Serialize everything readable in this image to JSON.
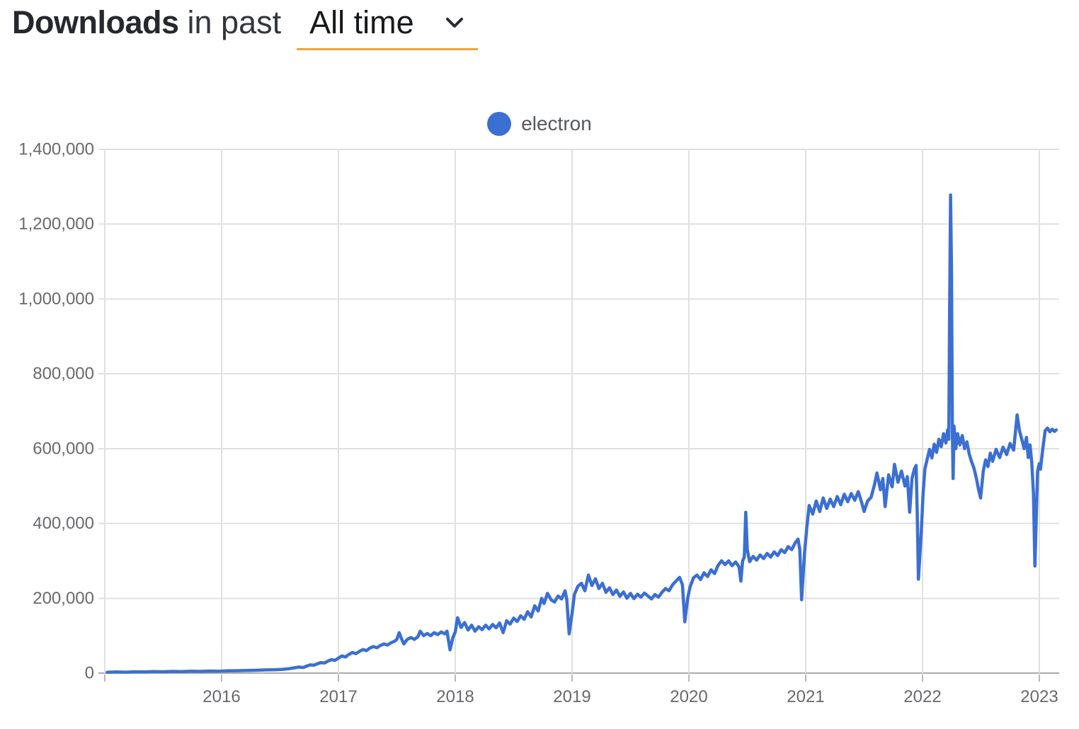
{
  "header": {
    "title_bold": "Downloads",
    "title_rest": "in past",
    "range_selector": {
      "value": "All time",
      "underline_color": "#f0a43c"
    }
  },
  "legend": {
    "series_label": "electron",
    "marker_color": "#3b6fd2"
  },
  "chart_data": {
    "type": "line",
    "title": "Downloads in past All time",
    "xlabel": "",
    "ylabel": "",
    "xlim": [
      2015.0,
      2023.17
    ],
    "ylim": [
      0,
      1400000
    ],
    "grid": true,
    "legend_position": "top-center",
    "line_color": "#3b6fd2",
    "grid_color": "#e0e0e0",
    "axis_color": "#ababab",
    "tick_color": "#b8b8b8",
    "tick_label_color": "#68696c",
    "x_ticks": [
      {
        "value": 2015,
        "label": ""
      },
      {
        "value": 2016,
        "label": "2016"
      },
      {
        "value": 2017,
        "label": "2017"
      },
      {
        "value": 2018,
        "label": "2018"
      },
      {
        "value": 2019,
        "label": "2019"
      },
      {
        "value": 2020,
        "label": "2020"
      },
      {
        "value": 2021,
        "label": "2021"
      },
      {
        "value": 2022,
        "label": "2022"
      },
      {
        "value": 2023,
        "label": "2023"
      }
    ],
    "y_ticks": [
      {
        "value": 0,
        "label": "0"
      },
      {
        "value": 200000,
        "label": "200,000"
      },
      {
        "value": 400000,
        "label": "400,000"
      },
      {
        "value": 600000,
        "label": "600,000"
      },
      {
        "value": 800000,
        "label": "800,000"
      },
      {
        "value": 1000000,
        "label": "1,000,000"
      },
      {
        "value": 1200000,
        "label": "1,200,000"
      },
      {
        "value": 1400000,
        "label": "1,400,000"
      }
    ],
    "series": [
      {
        "name": "electron",
        "color": "#3b6fd2",
        "points": [
          [
            2015.02,
            2000
          ],
          [
            2015.1,
            3000
          ],
          [
            2015.18,
            2500
          ],
          [
            2015.26,
            3500
          ],
          [
            2015.34,
            3000
          ],
          [
            2015.42,
            4000
          ],
          [
            2015.5,
            3500
          ],
          [
            2015.58,
            4500
          ],
          [
            2015.66,
            4000
          ],
          [
            2015.74,
            5000
          ],
          [
            2015.82,
            4500
          ],
          [
            2015.9,
            5500
          ],
          [
            2015.98,
            5000
          ],
          [
            2016.06,
            6000
          ],
          [
            2016.14,
            6500
          ],
          [
            2016.22,
            7000
          ],
          [
            2016.3,
            7500
          ],
          [
            2016.38,
            8500
          ],
          [
            2016.46,
            9000
          ],
          [
            2016.52,
            10000
          ],
          [
            2016.58,
            12000
          ],
          [
            2016.62,
            14000
          ],
          [
            2016.66,
            16000
          ],
          [
            2016.7,
            15000
          ],
          [
            2016.73,
            19000
          ],
          [
            2016.76,
            22000
          ],
          [
            2016.79,
            21000
          ],
          [
            2016.82,
            25000
          ],
          [
            2016.85,
            28000
          ],
          [
            2016.88,
            27000
          ],
          [
            2016.91,
            32000
          ],
          [
            2016.94,
            36000
          ],
          [
            2016.97,
            34000
          ],
          [
            2017.0,
            40000
          ],
          [
            2017.03,
            46000
          ],
          [
            2017.06,
            43000
          ],
          [
            2017.09,
            50000
          ],
          [
            2017.12,
            55000
          ],
          [
            2017.15,
            52000
          ],
          [
            2017.18,
            58000
          ],
          [
            2017.21,
            63000
          ],
          [
            2017.24,
            60000
          ],
          [
            2017.27,
            67000
          ],
          [
            2017.3,
            71000
          ],
          [
            2017.33,
            68000
          ],
          [
            2017.36,
            74000
          ],
          [
            2017.39,
            78000
          ],
          [
            2017.42,
            75000
          ],
          [
            2017.45,
            81000
          ],
          [
            2017.48,
            85000
          ],
          [
            2017.5,
            90000
          ],
          [
            2017.52,
            108000
          ],
          [
            2017.54,
            92000
          ],
          [
            2017.56,
            78000
          ],
          [
            2017.59,
            90000
          ],
          [
            2017.62,
            95000
          ],
          [
            2017.65,
            90000
          ],
          [
            2017.68,
            97000
          ],
          [
            2017.7,
            112000
          ],
          [
            2017.73,
            100000
          ],
          [
            2017.76,
            106000
          ],
          [
            2017.79,
            100000
          ],
          [
            2017.82,
            108000
          ],
          [
            2017.85,
            103000
          ],
          [
            2017.88,
            110000
          ],
          [
            2017.91,
            105000
          ],
          [
            2017.93,
            112000
          ],
          [
            2017.955,
            62000
          ],
          [
            2017.98,
            95000
          ],
          [
            2018.0,
            110000
          ],
          [
            2018.02,
            148000
          ],
          [
            2018.05,
            122000
          ],
          [
            2018.08,
            135000
          ],
          [
            2018.11,
            115000
          ],
          [
            2018.14,
            128000
          ],
          [
            2018.17,
            112000
          ],
          [
            2018.2,
            124000
          ],
          [
            2018.23,
            116000
          ],
          [
            2018.26,
            128000
          ],
          [
            2018.29,
            118000
          ],
          [
            2018.32,
            130000
          ],
          [
            2018.35,
            121000
          ],
          [
            2018.38,
            134000
          ],
          [
            2018.41,
            108000
          ],
          [
            2018.44,
            140000
          ],
          [
            2018.47,
            131000
          ],
          [
            2018.5,
            147000
          ],
          [
            2018.53,
            138000
          ],
          [
            2018.56,
            153000
          ],
          [
            2018.59,
            144000
          ],
          [
            2018.62,
            164000
          ],
          [
            2018.65,
            150000
          ],
          [
            2018.68,
            180000
          ],
          [
            2018.71,
            166000
          ],
          [
            2018.74,
            200000
          ],
          [
            2018.76,
            186000
          ],
          [
            2018.79,
            213000
          ],
          [
            2018.82,
            196000
          ],
          [
            2018.85,
            190000
          ],
          [
            2018.88,
            206000
          ],
          [
            2018.91,
            198000
          ],
          [
            2018.94,
            220000
          ],
          [
            2018.955,
            196000
          ],
          [
            2018.975,
            105000
          ],
          [
            2019.0,
            160000
          ],
          [
            2019.02,
            210000
          ],
          [
            2019.05,
            232000
          ],
          [
            2019.08,
            240000
          ],
          [
            2019.11,
            220000
          ],
          [
            2019.14,
            262000
          ],
          [
            2019.17,
            234000
          ],
          [
            2019.2,
            252000
          ],
          [
            2019.23,
            226000
          ],
          [
            2019.26,
            240000
          ],
          [
            2019.29,
            216000
          ],
          [
            2019.32,
            228000
          ],
          [
            2019.35,
            210000
          ],
          [
            2019.38,
            222000
          ],
          [
            2019.41,
            205000
          ],
          [
            2019.44,
            217000
          ],
          [
            2019.47,
            200000
          ],
          [
            2019.5,
            213000
          ],
          [
            2019.53,
            199000
          ],
          [
            2019.56,
            211000
          ],
          [
            2019.59,
            203000
          ],
          [
            2019.62,
            214000
          ],
          [
            2019.65,
            206000
          ],
          [
            2019.68,
            198000
          ],
          [
            2019.71,
            210000
          ],
          [
            2019.74,
            203000
          ],
          [
            2019.77,
            216000
          ],
          [
            2019.8,
            226000
          ],
          [
            2019.83,
            220000
          ],
          [
            2019.86,
            236000
          ],
          [
            2019.89,
            246000
          ],
          [
            2019.92,
            256000
          ],
          [
            2019.945,
            236000
          ],
          [
            2019.965,
            137000
          ],
          [
            2019.99,
            200000
          ],
          [
            2020.01,
            230000
          ],
          [
            2020.04,
            255000
          ],
          [
            2020.07,
            262000
          ],
          [
            2020.1,
            250000
          ],
          [
            2020.13,
            268000
          ],
          [
            2020.16,
            258000
          ],
          [
            2020.19,
            276000
          ],
          [
            2020.22,
            266000
          ],
          [
            2020.25,
            288000
          ],
          [
            2020.28,
            300000
          ],
          [
            2020.31,
            290000
          ],
          [
            2020.34,
            300000
          ],
          [
            2020.37,
            287000
          ],
          [
            2020.4,
            297000
          ],
          [
            2020.43,
            284000
          ],
          [
            2020.445,
            246000
          ],
          [
            2020.46,
            300000
          ],
          [
            2020.475,
            310000
          ],
          [
            2020.487,
            430000
          ],
          [
            2020.5,
            330000
          ],
          [
            2020.52,
            298000
          ],
          [
            2020.55,
            312000
          ],
          [
            2020.58,
            302000
          ],
          [
            2020.61,
            316000
          ],
          [
            2020.64,
            306000
          ],
          [
            2020.67,
            320000
          ],
          [
            2020.7,
            310000
          ],
          [
            2020.73,
            324000
          ],
          [
            2020.76,
            314000
          ],
          [
            2020.79,
            330000
          ],
          [
            2020.82,
            322000
          ],
          [
            2020.85,
            338000
          ],
          [
            2020.88,
            330000
          ],
          [
            2020.91,
            348000
          ],
          [
            2020.935,
            358000
          ],
          [
            2020.95,
            330000
          ],
          [
            2020.965,
            196000
          ],
          [
            2020.99,
            320000
          ],
          [
            2021.01,
            390000
          ],
          [
            2021.03,
            448000
          ],
          [
            2021.06,
            425000
          ],
          [
            2021.09,
            460000
          ],
          [
            2021.12,
            432000
          ],
          [
            2021.15,
            468000
          ],
          [
            2021.18,
            440000
          ],
          [
            2021.21,
            465000
          ],
          [
            2021.24,
            445000
          ],
          [
            2021.27,
            472000
          ],
          [
            2021.3,
            450000
          ],
          [
            2021.33,
            478000
          ],
          [
            2021.36,
            458000
          ],
          [
            2021.39,
            480000
          ],
          [
            2021.42,
            462000
          ],
          [
            2021.45,
            485000
          ],
          [
            2021.48,
            455000
          ],
          [
            2021.5,
            432000
          ],
          [
            2021.53,
            460000
          ],
          [
            2021.56,
            470000
          ],
          [
            2021.59,
            505000
          ],
          [
            2021.61,
            535000
          ],
          [
            2021.64,
            490000
          ],
          [
            2021.66,
            520000
          ],
          [
            2021.68,
            445000
          ],
          [
            2021.71,
            530000
          ],
          [
            2021.74,
            498000
          ],
          [
            2021.76,
            558000
          ],
          [
            2021.79,
            510000
          ],
          [
            2021.82,
            540000
          ],
          [
            2021.85,
            500000
          ],
          [
            2021.87,
            525000
          ],
          [
            2021.89,
            430000
          ],
          [
            2021.91,
            520000
          ],
          [
            2021.93,
            545000
          ],
          [
            2021.945,
            555000
          ],
          [
            2021.955,
            430000
          ],
          [
            2021.965,
            251000
          ],
          [
            2021.99,
            380000
          ],
          [
            2022.005,
            480000
          ],
          [
            2022.02,
            545000
          ],
          [
            2022.04,
            572000
          ],
          [
            2022.06,
            598000
          ],
          [
            2022.08,
            575000
          ],
          [
            2022.1,
            612000
          ],
          [
            2022.12,
            590000
          ],
          [
            2022.14,
            625000
          ],
          [
            2022.16,
            605000
          ],
          [
            2022.18,
            640000
          ],
          [
            2022.2,
            615000
          ],
          [
            2022.215,
            650000
          ],
          [
            2022.225,
            625000
          ],
          [
            2022.232,
            950000
          ],
          [
            2022.24,
            1278000
          ],
          [
            2022.248,
            1080000
          ],
          [
            2022.256,
            640000
          ],
          [
            2022.262,
            520000
          ],
          [
            2022.27,
            660000
          ],
          [
            2022.285,
            600000
          ],
          [
            2022.3,
            640000
          ],
          [
            2022.32,
            610000
          ],
          [
            2022.34,
            635000
          ],
          [
            2022.36,
            600000
          ],
          [
            2022.38,
            618000
          ],
          [
            2022.4,
            585000
          ],
          [
            2022.42,
            565000
          ],
          [
            2022.44,
            548000
          ],
          [
            2022.46,
            522000
          ],
          [
            2022.48,
            490000
          ],
          [
            2022.497,
            468000
          ],
          [
            2022.52,
            540000
          ],
          [
            2022.54,
            570000
          ],
          [
            2022.56,
            552000
          ],
          [
            2022.58,
            588000
          ],
          [
            2022.6,
            566000
          ],
          [
            2022.63,
            598000
          ],
          [
            2022.66,
            576000
          ],
          [
            2022.69,
            604000
          ],
          [
            2022.72,
            584000
          ],
          [
            2022.75,
            614000
          ],
          [
            2022.78,
            596000
          ],
          [
            2022.81,
            690000
          ],
          [
            2022.83,
            648000
          ],
          [
            2022.85,
            625000
          ],
          [
            2022.87,
            600000
          ],
          [
            2022.89,
            630000
          ],
          [
            2022.905,
            576000
          ],
          [
            2022.92,
            610000
          ],
          [
            2022.935,
            565000
          ],
          [
            2022.95,
            480000
          ],
          [
            2022.962,
            286000
          ],
          [
            2022.985,
            540000
          ],
          [
            2023.0,
            560000
          ],
          [
            2023.01,
            545000
          ],
          [
            2023.03,
            600000
          ],
          [
            2023.05,
            648000
          ],
          [
            2023.07,
            655000
          ],
          [
            2023.09,
            645000
          ],
          [
            2023.11,
            652000
          ],
          [
            2023.13,
            646000
          ],
          [
            2023.145,
            650000
          ]
        ]
      }
    ]
  }
}
